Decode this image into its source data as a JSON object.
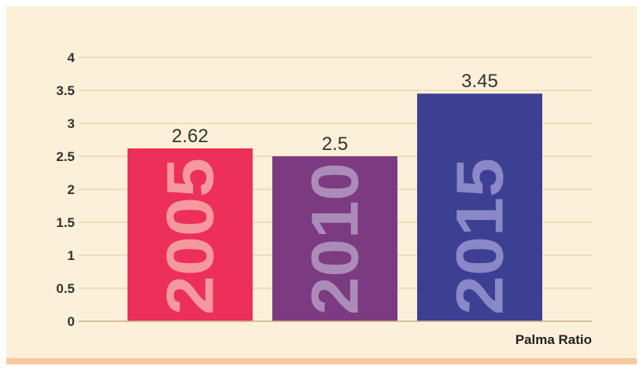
{
  "chart_data": {
    "type": "bar",
    "title": "",
    "xlabel": "Palma Ratio",
    "ylabel": "",
    "categories": [
      "2005",
      "2010",
      "2015"
    ],
    "values": [
      2.62,
      2.5,
      3.45
    ],
    "value_labels": [
      "2.62",
      "2.5",
      "3.45"
    ],
    "ylim": [
      0,
      4
    ],
    "yticks": [
      0,
      0.5,
      1,
      1.5,
      2,
      2.5,
      3,
      3.5,
      4
    ],
    "ytick_labels": [
      "0",
      "0.5",
      "1",
      "1.5",
      "2",
      "2.5",
      "3",
      "3.5",
      "4"
    ],
    "grid": true,
    "legend": "none",
    "colors": {
      "background": "#fdf0d8",
      "footer_band": "#f7c99e",
      "grid": "#e2c79f",
      "bars": [
        "#ec2f5b",
        "#7c3a80",
        "#3c3f92"
      ],
      "bar_text": [
        "#f6999e",
        "#ab8cb8",
        "#8b88c8"
      ]
    }
  }
}
